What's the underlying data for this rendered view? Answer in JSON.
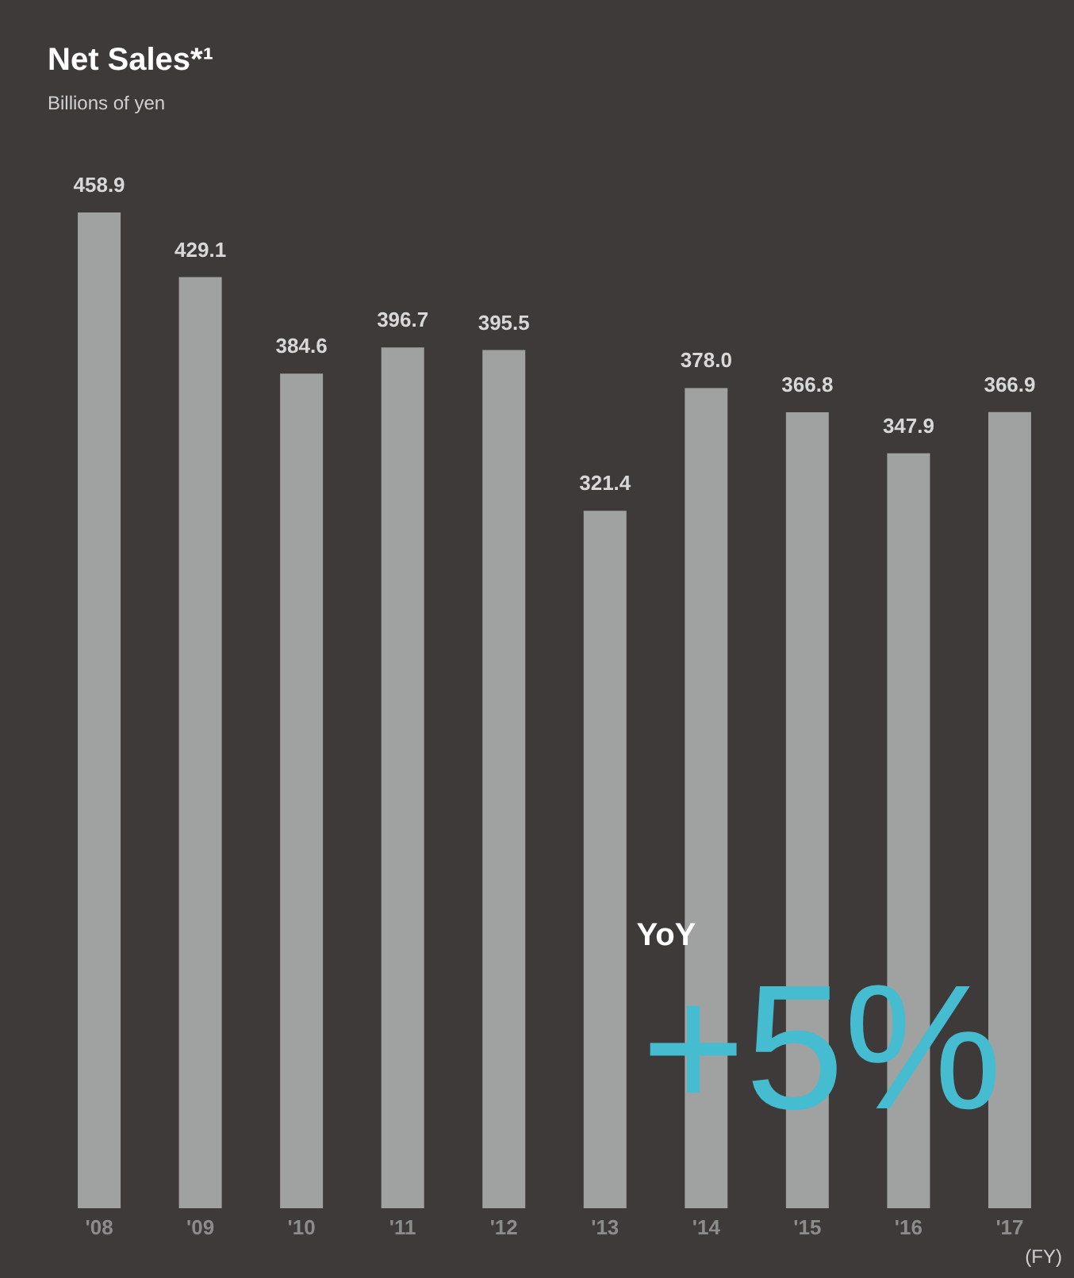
{
  "chart_data": {
    "type": "bar",
    "title": "Net Sales*¹",
    "subtitle": "Billions of yen",
    "xlabel": "(FY)",
    "categories": [
      "'08",
      "'09",
      "'10",
      "'11",
      "'12",
      "'13",
      "'14",
      "'15",
      "'16",
      "'17"
    ],
    "values": [
      458.9,
      429.1,
      384.6,
      396.7,
      395.5,
      321.4,
      378.0,
      366.8,
      347.9,
      366.9
    ],
    "value_labels": [
      "458.9",
      "429.1",
      "384.6",
      "396.7",
      "395.5",
      "321.4",
      "378.0",
      "366.8",
      "347.9",
      "366.9"
    ],
    "color": "#a0a2a1",
    "grid": false,
    "annotations": [
      "YoY",
      "+5%"
    ]
  }
}
